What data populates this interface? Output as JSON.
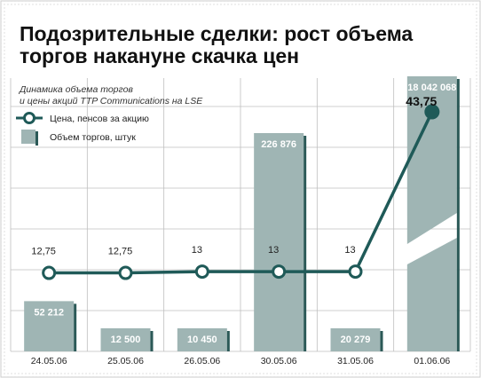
{
  "title_line1": "Подозрительные сделки: рост объема",
  "title_line2": "торгов накануне скачка цен",
  "subtitle_line1": "Динамика объема торгов",
  "subtitle_line2": "и цены акций TTP Communications на LSE",
  "colors": {
    "price_line": "#1f5a58",
    "bar_fill": "#9fb5b4",
    "bar_shadow": "#2b5957",
    "grid": "#bfbfbf",
    "frame": "#6e8786",
    "title_box": "#ffffff"
  },
  "chart_data": {
    "type": "bar+line",
    "categories": [
      "24.05.06",
      "25.05.06",
      "26.05.06",
      "30.05.06",
      "31.05.06",
      "01.06.06"
    ],
    "series": [
      {
        "name": "Цена, пенсов за акцию",
        "kind": "line",
        "values": [
          12.75,
          12.75,
          13,
          13,
          13,
          43.75
        ],
        "labels": [
          "12,75",
          "12,75",
          "13",
          "13",
          "13",
          "43,75"
        ]
      },
      {
        "name": "Объем торгов, штук",
        "kind": "bar",
        "values": [
          52212,
          12500,
          10450,
          226876,
          20279,
          18042068
        ],
        "labels": [
          "52 212",
          "12 500",
          "10 450",
          "226 876",
          "20 279",
          "18 042 068"
        ],
        "axis_break_on_last": true
      }
    ],
    "grid": true,
    "legend_position": "top-left"
  }
}
